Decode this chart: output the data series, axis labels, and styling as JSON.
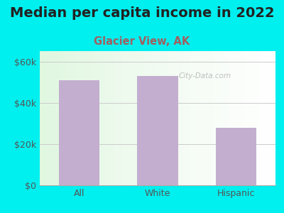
{
  "title": "Median per capita income in 2022",
  "subtitle": "Glacier View, AK",
  "categories": [
    "All",
    "White",
    "Hispanic"
  ],
  "values": [
    51000,
    53000,
    28000
  ],
  "bar_color": "#c4aed0",
  "background_color": "#00efef",
  "title_color": "#222222",
  "subtitle_color": "#a06060",
  "tick_label_color": "#555555",
  "grid_color": "#cccccc",
  "bottom_line_color": "#aaaaaa",
  "ylim": [
    0,
    65000
  ],
  "yticks": [
    0,
    20000,
    40000,
    60000
  ],
  "ytick_labels": [
    "$0",
    "$20k",
    "$40k",
    "$60k"
  ],
  "watermark": "City-Data.com",
  "title_fontsize": 14,
  "subtitle_fontsize": 10.5,
  "tick_fontsize": 9
}
